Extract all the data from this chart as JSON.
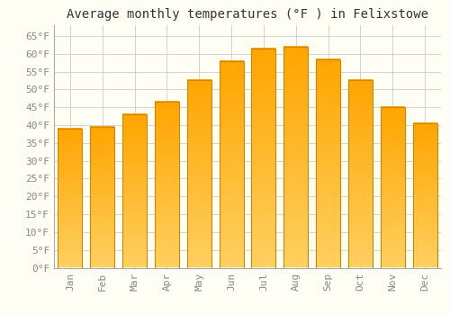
{
  "title": "Average monthly temperatures (°F ) in Felixstowe",
  "months": [
    "Jan",
    "Feb",
    "Mar",
    "Apr",
    "May",
    "Jun",
    "Jul",
    "Aug",
    "Sep",
    "Oct",
    "Nov",
    "Dec"
  ],
  "values": [
    39,
    39.5,
    43,
    46.5,
    52.5,
    58,
    61.5,
    62,
    58.5,
    52.5,
    45,
    40.5
  ],
  "bar_color_top": "#FFA500",
  "bar_color_bottom": "#FFD060",
  "bar_edge_color": "#CC8800",
  "ylim": [
    0,
    68
  ],
  "yticks": [
    0,
    5,
    10,
    15,
    20,
    25,
    30,
    35,
    40,
    45,
    50,
    55,
    60,
    65
  ],
  "background_color": "#FFFEF5",
  "grid_color": "#CCCCCC",
  "title_fontsize": 10,
  "tick_fontsize": 8,
  "title_font": "monospace",
  "bar_width": 0.75
}
